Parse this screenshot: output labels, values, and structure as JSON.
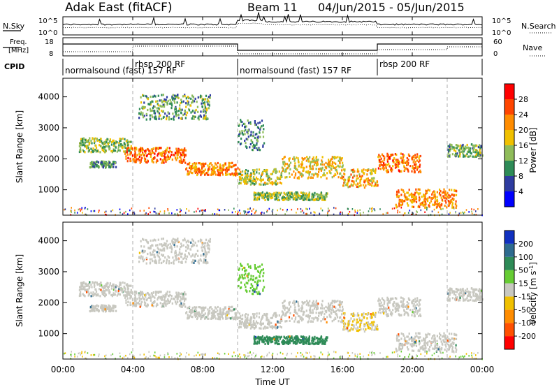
{
  "header": {
    "site": "Adak East (fitACF)",
    "beam": "Beam 11",
    "dates": "04/Jun/2015 - 05/Jun/2015"
  },
  "left_labels": {
    "nsky": "N.Sky",
    "freq_line1": "Freq.",
    "freq_line2": "[MHz]",
    "cpid": "CPID"
  },
  "right_labels": {
    "nsearch": "N.Search",
    "nave": "Nave"
  },
  "noise_axis": {
    "left_top": "10^5",
    "left_bottom": "10^0",
    "right_top": "10^5",
    "right_bottom": "10^0"
  },
  "freq_axis": {
    "left_top": "18",
    "left_bottom": "8",
    "right_top": "60",
    "right_bottom": "0"
  },
  "cpid_segments": [
    {
      "label": "normalsound (fast) 157 RF",
      "start_h": 0,
      "end_h": 4,
      "row": "low"
    },
    {
      "label": "rbsp 200 RF",
      "start_h": 4,
      "end_h": 10,
      "row": "high"
    },
    {
      "label": "normalsound (fast) 157 RF",
      "start_h": 10,
      "end_h": 18,
      "row": "low"
    },
    {
      "label": "rbsp 200 RF",
      "start_h": 18,
      "end_h": 22,
      "row": "high"
    }
  ],
  "x_axis": {
    "title": "Time UT",
    "range_h": [
      0,
      24
    ],
    "ticks": [
      "00:00",
      "04:00",
      "08:00",
      "12:00",
      "16:00",
      "20:00",
      "00:00"
    ]
  },
  "power_panel": {
    "ylabel": "Slant Range [km]",
    "yticks": [
      "1000",
      "2000",
      "3000",
      "4000"
    ],
    "colorbar_label": "Power [dB]",
    "colorbar_ticks": [
      "4",
      "8",
      "12",
      "16",
      "20",
      "24",
      "28"
    ],
    "colors": [
      "#0000ff",
      "#2e3ca0",
      "#2e8b57",
      "#8fbc5a",
      "#f0c000",
      "#ff8c00",
      "#ff4500",
      "#ff0000"
    ]
  },
  "velocity_panel": {
    "ylabel": "Slant Range [km]",
    "yticks": [
      "1000",
      "2000",
      "3000",
      "4000"
    ],
    "colorbar_label": "Velocity [m s^-1]",
    "colorbar_ticks": [
      "200",
      "100",
      "50",
      "15",
      "-15",
      "-50",
      "-100",
      "-200"
    ],
    "colors": [
      "#1030c0",
      "#2e6b8f",
      "#2e8b57",
      "#66cc33",
      "#c8c8c0",
      "#f0c000",
      "#ff8c00",
      "#ff5000",
      "#ff0000"
    ]
  },
  "chart_data": {
    "type": "heatmap",
    "title": "Adak East (fitACF) Beam 11 04/Jun/2015 - 05/Jun/2015",
    "xlabel": "Time UT",
    "ylabel": "Slant Range [km]",
    "x_range_h": [
      0,
      24
    ],
    "y_range_km": [
      180,
      4600
    ],
    "scatter_bands": [
      {
        "t": [
          0.9,
          3.9
        ],
        "r": [
          2250,
          2700
        ],
        "power": 14,
        "velocity": 0
      },
      {
        "t": [
          1.5,
          3.0
        ],
        "r": [
          1750,
          1950
        ],
        "power": 10,
        "velocity": 0
      },
      {
        "t": [
          3.5,
          7.0
        ],
        "r": [
          1900,
          2400
        ],
        "power": 24,
        "velocity": 0
      },
      {
        "t": [
          7.0,
          10.0
        ],
        "r": [
          1500,
          1900
        ],
        "power": 22,
        "velocity": 0
      },
      {
        "t": [
          4.3,
          8.4
        ],
        "r": [
          3300,
          4100
        ],
        "power": 12,
        "velocity": 0
      },
      {
        "t": [
          10.0,
          12.5
        ],
        "r": [
          1200,
          1700
        ],
        "power": 16,
        "velocity": 0
      },
      {
        "t": [
          12.5,
          16.0
        ],
        "r": [
          1400,
          2100
        ],
        "power": 18,
        "velocity": 0
      },
      {
        "t": [
          16.0,
          18.0
        ],
        "r": [
          1100,
          1700
        ],
        "power": 20,
        "velocity": -15
      },
      {
        "t": [
          10.9,
          15.1
        ],
        "r": [
          700,
          950
        ],
        "power": 14,
        "velocity": 60
      },
      {
        "t": [
          18.0,
          20.5
        ],
        "r": [
          1600,
          2200
        ],
        "power": 24,
        "velocity": 0
      },
      {
        "t": [
          19.0,
          22.5
        ],
        "r": [
          450,
          1050
        ],
        "power": 22,
        "velocity": 0
      },
      {
        "t": [
          22.0,
          24.0
        ],
        "r": [
          2100,
          2500
        ],
        "power": 12,
        "velocity": 0
      },
      {
        "t": [
          10.0,
          11.5
        ],
        "r": [
          2300,
          3300
        ],
        "power": 10,
        "velocity": 30
      }
    ]
  }
}
